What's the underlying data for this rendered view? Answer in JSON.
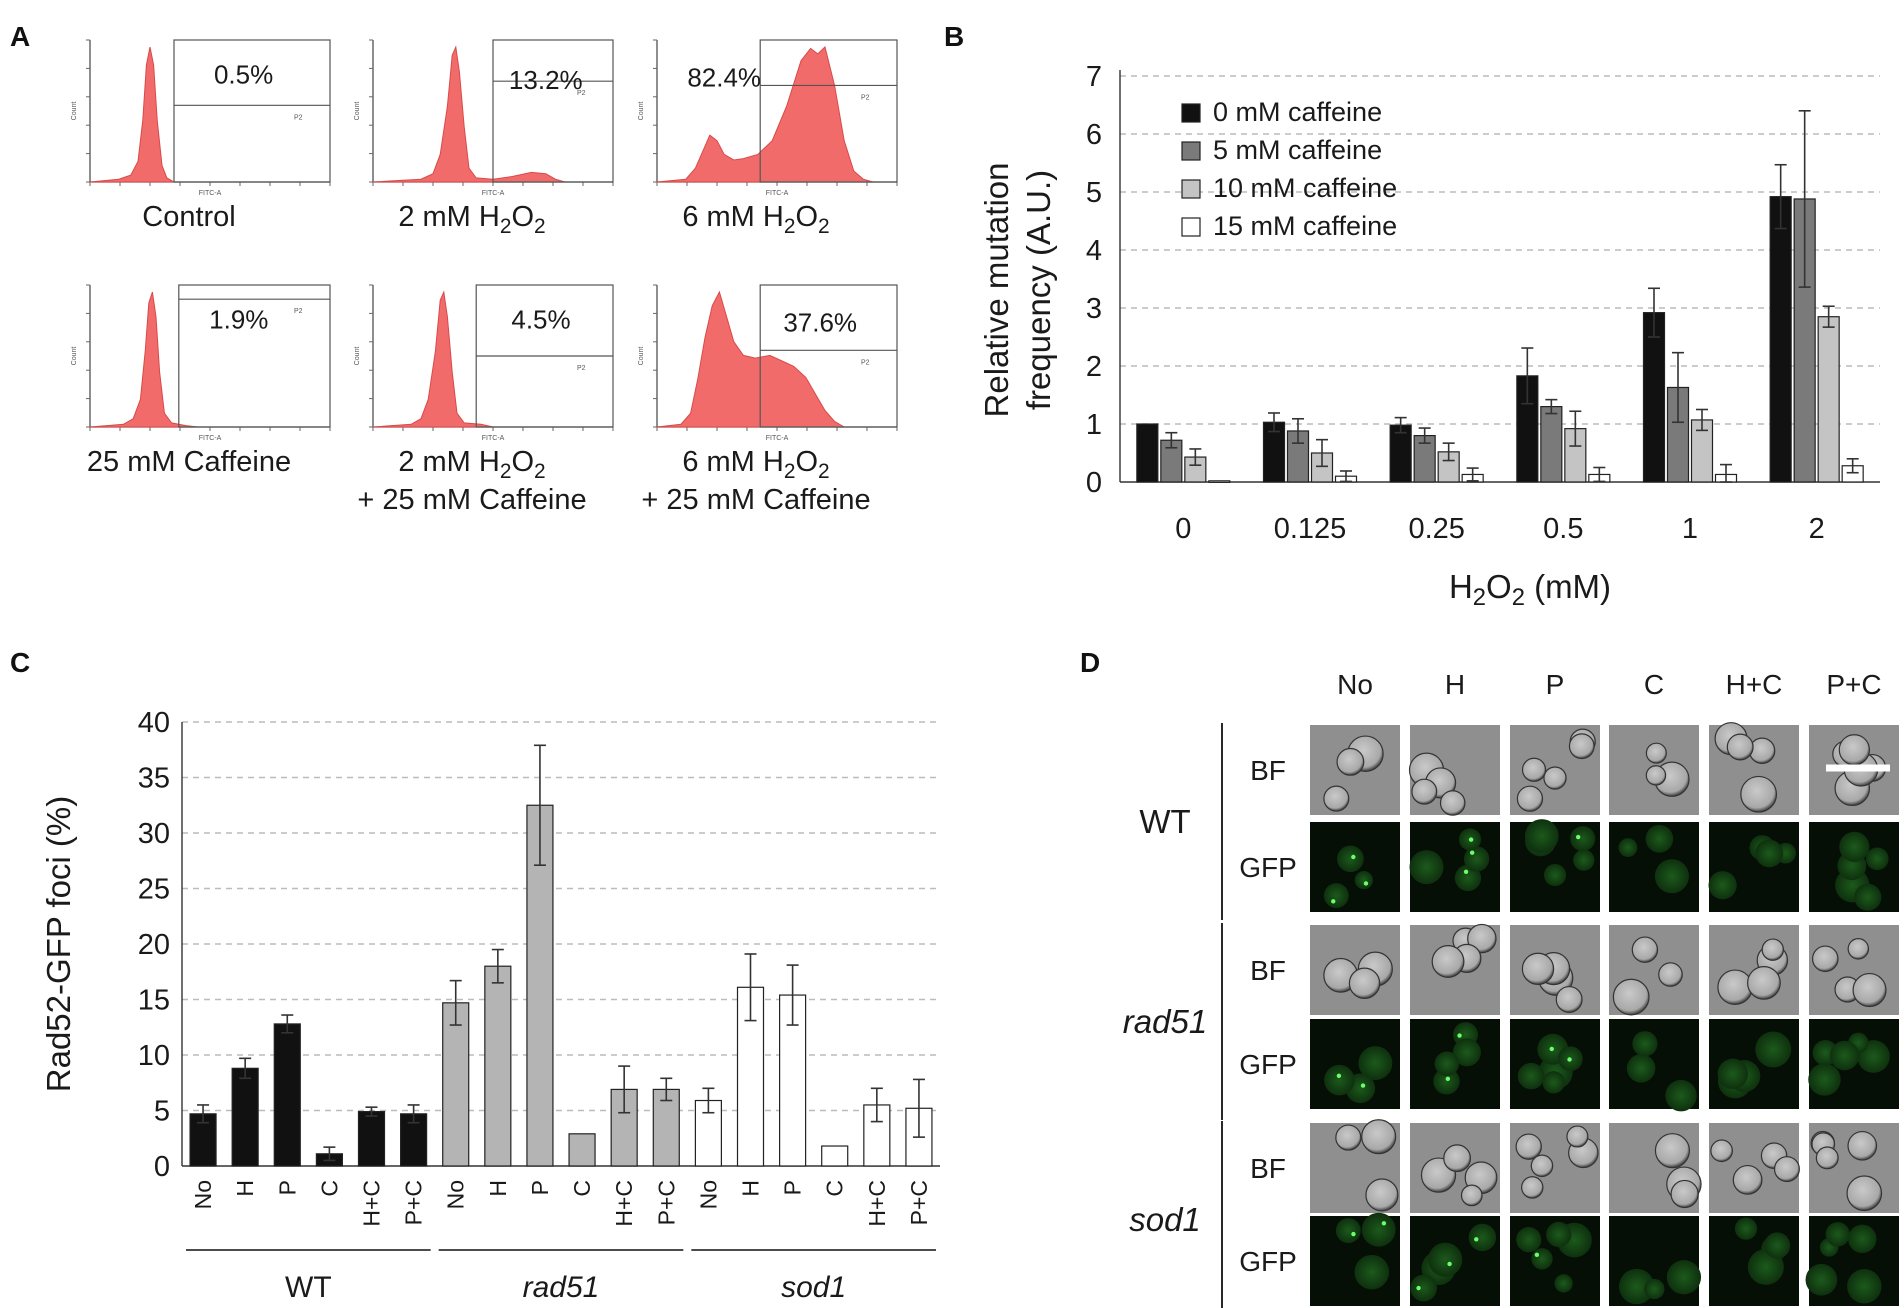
{
  "panels": {
    "a": "A",
    "b": "B",
    "c": "C",
    "d": "D"
  },
  "histogram_axis": {
    "xlabel": "FITC-A",
    "ylabel": "Count",
    "gate": "P2"
  },
  "colors": {
    "hist_fill": "#f26b6b",
    "hist_edge": "#d94a4a",
    "black": "#111111",
    "dark_gray": "#7a7a7a",
    "light_gray": "#c4c4c4",
    "white": "#ffffff",
    "cell_gfp": "#0b2a0b"
  },
  "chart_data": [
    {
      "id": "A",
      "type": "histogram",
      "panels": [
        {
          "percent": "0.5%",
          "caption": "Control",
          "shape": "control"
        },
        {
          "percent": "13.2%",
          "caption": "2 mM H₂O₂",
          "shape": "h2"
        },
        {
          "percent": "82.4%",
          "caption": "6 mM H₂O₂",
          "shape": "h6"
        },
        {
          "percent": "1.9%",
          "caption": "25 mM Caffeine",
          "shape": "caf"
        },
        {
          "percent": "4.5%",
          "caption": "2 mM H₂O₂",
          "caption2": "+ 25 mM Caffeine",
          "shape": "h2caf"
        },
        {
          "percent": "37.6%",
          "caption": "6 mM H₂O₂",
          "caption2": "+ 25 mM Caffeine",
          "shape": "h6caf"
        }
      ]
    },
    {
      "id": "B",
      "type": "bar",
      "xlabel": "H₂O₂ (mM)",
      "ylabel_line1": "Relative mutation",
      "ylabel_line2": "frequency (A.U.)",
      "ylim": [
        0,
        7
      ],
      "yticks": [
        "0",
        "1",
        "2",
        "3",
        "4",
        "5",
        "6",
        "7"
      ],
      "categories": [
        "0",
        "0.125",
        "0.25",
        "0.5",
        "1",
        "2"
      ],
      "series": [
        {
          "name": "0 mM caffeine",
          "color": "#111111",
          "values": [
            1.0,
            1.03,
            0.98,
            1.83,
            2.92,
            4.92
          ],
          "errors": [
            0.0,
            0.16,
            0.13,
            0.48,
            0.42,
            0.55
          ]
        },
        {
          "name": "5 mM caffeine",
          "color": "#7a7a7a",
          "values": [
            0.72,
            0.88,
            0.8,
            1.3,
            1.63,
            4.88
          ],
          "errors": [
            0.13,
            0.21,
            0.13,
            0.12,
            0.6,
            1.52
          ]
        },
        {
          "name": "10 mM caffeine",
          "color": "#c4c4c4",
          "values": [
            0.43,
            0.5,
            0.52,
            0.92,
            1.07,
            2.85
          ],
          "errors": [
            0.14,
            0.23,
            0.15,
            0.3,
            0.18,
            0.18
          ]
        },
        {
          "name": "15 mM caffeine",
          "color": "#ffffff",
          "values": [
            0.02,
            0.1,
            0.13,
            0.13,
            0.13,
            0.28
          ],
          "errors": [
            0.0,
            0.09,
            0.11,
            0.12,
            0.17,
            0.12
          ]
        }
      ]
    },
    {
      "id": "C",
      "type": "bar",
      "ylabel": "Rad52-GFP foci (%)",
      "ylim": [
        0,
        40
      ],
      "yticks": [
        "0",
        "5",
        "10",
        "15",
        "20",
        "25",
        "30",
        "35",
        "40"
      ],
      "groups": [
        {
          "name": "WT",
          "italic": false,
          "color": "#111111",
          "categories": [
            "No",
            "H",
            "P",
            "C",
            "H+C",
            "P+C"
          ],
          "values": [
            4.7,
            8.8,
            12.8,
            1.1,
            4.9,
            4.7
          ],
          "errors": [
            0.8,
            0.9,
            0.8,
            0.6,
            0.4,
            0.8
          ]
        },
        {
          "name": "rad51",
          "italic": true,
          "color": "#b4b4b4",
          "categories": [
            "No",
            "H",
            "P",
            "C",
            "H+C",
            "P+C"
          ],
          "values": [
            14.7,
            18.0,
            32.5,
            2.9,
            6.9,
            6.9
          ],
          "errors": [
            2.0,
            1.5,
            5.4,
            0.0,
            2.1,
            1.0
          ]
        },
        {
          "name": "sod1",
          "italic": true,
          "color": "#ffffff",
          "categories": [
            "No",
            "H",
            "P",
            "C",
            "H+C",
            "P+C"
          ],
          "values": [
            5.9,
            16.1,
            15.4,
            1.8,
            5.5,
            5.2
          ],
          "errors": [
            1.1,
            3.0,
            2.7,
            0.0,
            1.5,
            2.6
          ]
        }
      ]
    },
    {
      "id": "D",
      "type": "image_grid",
      "columns": [
        "No",
        "H",
        "P",
        "C",
        "H+C",
        "P+C"
      ],
      "strains": [
        {
          "name": "WT",
          "italic": false,
          "rows": [
            "BF",
            "GFP"
          ]
        },
        {
          "name": "rad51",
          "italic": true,
          "rows": [
            "BF",
            "GFP"
          ]
        },
        {
          "name": "sod1",
          "italic": true,
          "rows": [
            "BF",
            "GFP"
          ]
        }
      ]
    }
  ]
}
